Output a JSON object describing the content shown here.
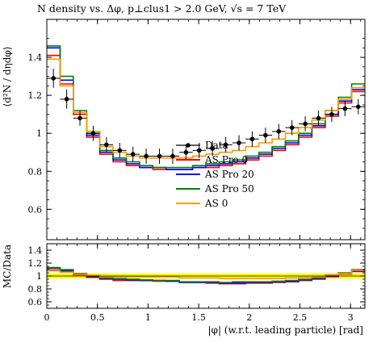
{
  "chart_data": [
    {
      "type": "line",
      "title": "N density vs. Δφ, p⊥clus1 > 2.0 GeV, √s = 7 TeV",
      "ylabel": "⟨d²N / dηdφ⟩",
      "xlabel": "",
      "xlim": [
        0,
        3.1416
      ],
      "ylim": [
        0.44,
        1.6
      ],
      "y_ticks": [
        0.6,
        0.8,
        1.0,
        1.2,
        1.4
      ],
      "y_tick_labels": [
        "0.6",
        "0.8",
        "1",
        "1.2",
        "1.4"
      ],
      "x_edges": [
        0,
        0.1309,
        0.2618,
        0.3927,
        0.5236,
        0.6545,
        0.7854,
        0.9163,
        1.0472,
        1.1781,
        1.309,
        1.4399,
        1.5708,
        1.7017,
        1.8326,
        1.9635,
        2.0944,
        2.2253,
        2.3562,
        2.4871,
        2.618,
        2.7489,
        2.8798,
        3.0107,
        3.1416
      ],
      "data": {
        "name": "Data",
        "color": "#000000",
        "x": [
          0.0654,
          0.1963,
          0.3272,
          0.4581,
          0.589,
          0.7199,
          0.8508,
          0.9817,
          1.1126,
          1.2435,
          1.3744,
          1.5053,
          1.6362,
          1.7671,
          1.898,
          2.0289,
          2.1598,
          2.2907,
          2.4216,
          2.5525,
          2.6834,
          2.8143,
          2.9452,
          3.0761
        ],
        "y": [
          1.29,
          1.18,
          1.08,
          1.0,
          0.94,
          0.91,
          0.89,
          0.88,
          0.88,
          0.88,
          0.9,
          0.91,
          0.92,
          0.94,
          0.95,
          0.97,
          0.99,
          1.01,
          1.03,
          1.05,
          1.08,
          1.1,
          1.13,
          1.14
        ],
        "yerr": [
          0.05,
          0.05,
          0.04,
          0.04,
          0.04,
          0.04,
          0.04,
          0.04,
          0.04,
          0.04,
          0.04,
          0.04,
          0.04,
          0.04,
          0.04,
          0.04,
          0.04,
          0.04,
          0.04,
          0.04,
          0.04,
          0.04,
          0.04,
          0.04
        ]
      },
      "series": [
        {
          "name": "AS Pro 0",
          "color": "#ff0000",
          "values": [
            1.41,
            1.26,
            1.1,
            0.98,
            0.89,
            0.85,
            0.83,
            0.82,
            0.81,
            0.81,
            0.81,
            0.82,
            0.82,
            0.83,
            0.84,
            0.86,
            0.88,
            0.91,
            0.94,
            0.98,
            1.03,
            1.09,
            1.16,
            1.22
          ]
        },
        {
          "name": "AS Pro 20",
          "color": "#0000ff",
          "values": [
            1.45,
            1.28,
            1.11,
            0.99,
            0.9,
            0.86,
            0.84,
            0.82,
            0.82,
            0.81,
            0.81,
            0.82,
            0.83,
            0.84,
            0.85,
            0.87,
            0.89,
            0.92,
            0.95,
            0.99,
            1.04,
            1.1,
            1.17,
            1.23
          ]
        },
        {
          "name": "AS Pro 50",
          "color": "#008000",
          "values": [
            1.46,
            1.3,
            1.12,
            1.0,
            0.91,
            0.87,
            0.85,
            0.83,
            0.82,
            0.82,
            0.82,
            0.83,
            0.84,
            0.85,
            0.86,
            0.88,
            0.9,
            0.93,
            0.96,
            1.0,
            1.05,
            1.12,
            1.19,
            1.26
          ]
        },
        {
          "name": "AS 0",
          "color": "#ff9900",
          "values": [
            1.39,
            1.25,
            1.11,
            1.01,
            0.93,
            0.9,
            0.88,
            0.87,
            0.87,
            0.87,
            0.87,
            0.88,
            0.89,
            0.9,
            0.91,
            0.93,
            0.95,
            0.97,
            1.0,
            1.03,
            1.07,
            1.12,
            1.18,
            1.24
          ]
        }
      ],
      "legend": {
        "position": "right-middle",
        "entries": [
          "Data",
          "AS Pro 0",
          "AS Pro 20",
          "AS Pro 50",
          "AS 0"
        ]
      },
      "colors": {
        "error_band": "#ffff00",
        "frame": "#000000"
      }
    },
    {
      "type": "line",
      "title": "",
      "ylabel": "MC/Data",
      "xlabel": "|φ| (w.r.t. leading particle) [rad]",
      "xlim": [
        0,
        3.1416
      ],
      "ylim": [
        0.5,
        1.5
      ],
      "y_ticks": [
        0.6,
        0.8,
        1.0,
        1.2,
        1.4
      ],
      "y_tick_labels": [
        "0.6",
        "0.8",
        "1",
        "1.2",
        "1.4"
      ],
      "x_ticks": [
        0,
        0.5,
        1.0,
        1.5,
        2.0,
        2.5,
        3.0
      ],
      "x_tick_labels": [
        "0",
        "0.5",
        "1",
        "1.5",
        "2",
        "2.5",
        "3"
      ],
      "band_halfwidth": 0.04,
      "series": [
        {
          "name": "AS Pro 0",
          "color": "#ff0000",
          "values": [
            1.09,
            1.07,
            1.02,
            0.98,
            0.95,
            0.93,
            0.93,
            0.93,
            0.92,
            0.92,
            0.9,
            0.9,
            0.89,
            0.88,
            0.88,
            0.89,
            0.89,
            0.9,
            0.91,
            0.93,
            0.95,
            0.99,
            1.03,
            1.07
          ]
        },
        {
          "name": "AS Pro 20",
          "color": "#0000ff",
          "values": [
            1.12,
            1.08,
            1.03,
            0.99,
            0.96,
            0.95,
            0.94,
            0.93,
            0.93,
            0.92,
            0.9,
            0.9,
            0.9,
            0.89,
            0.89,
            0.9,
            0.9,
            0.91,
            0.92,
            0.94,
            0.96,
            1.0,
            1.04,
            1.08
          ]
        },
        {
          "name": "AS Pro 50",
          "color": "#008000",
          "values": [
            1.13,
            1.1,
            1.04,
            1.0,
            0.97,
            0.96,
            0.95,
            0.94,
            0.93,
            0.93,
            0.91,
            0.91,
            0.91,
            0.9,
            0.91,
            0.91,
            0.91,
            0.92,
            0.93,
            0.95,
            0.97,
            1.02,
            1.05,
            1.1
          ]
        },
        {
          "name": "AS 0",
          "color": "#ff9900",
          "values": [
            1.08,
            1.06,
            1.03,
            1.01,
            0.99,
            0.99,
            0.99,
            0.99,
            0.99,
            0.99,
            0.97,
            0.97,
            0.97,
            0.96,
            0.96,
            0.96,
            0.96,
            0.96,
            0.97,
            0.98,
            0.99,
            1.02,
            1.04,
            1.09
          ]
        }
      ]
    }
  ]
}
